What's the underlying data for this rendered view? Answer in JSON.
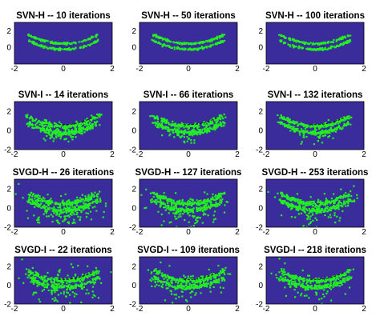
{
  "colors": {
    "background": "#3b2c9b",
    "particles": "#22ee22",
    "contour": "#111111",
    "axis": "#000000"
  },
  "chart_data": [
    {
      "type": "scatter",
      "title": "SVN-H -- 10 iterations",
      "method": "SVN-H",
      "iterations": 10,
      "xlim": [
        -2,
        2
      ],
      "ylim": [
        -2,
        3
      ],
      "xticks": [
        "-2",
        "0",
        "2"
      ],
      "yticks": [
        "0",
        "2"
      ]
    },
    {
      "type": "scatter",
      "title": "SVN-H -- 50 iterations",
      "method": "SVN-H",
      "iterations": 50,
      "xlim": [
        -2,
        2
      ],
      "ylim": [
        -2,
        3
      ],
      "xticks": [
        "-2",
        "0",
        "2"
      ],
      "yticks": [
        "0",
        "2"
      ]
    },
    {
      "type": "scatter",
      "title": "SVN-H -- 100 iterations",
      "method": "SVN-H",
      "iterations": 100,
      "xlim": [
        -2,
        2
      ],
      "ylim": [
        -2,
        3
      ],
      "xticks": [
        "-2",
        "0",
        "2"
      ],
      "yticks": [
        "0",
        "2"
      ]
    },
    {
      "type": "scatter",
      "title": "SVN-I -- 14 iterations",
      "method": "SVN-I",
      "iterations": 14,
      "xlim": [
        -2,
        2
      ],
      "ylim": [
        -2,
        3
      ],
      "xticks": [
        "-2",
        "0",
        "2"
      ],
      "yticks": [
        "-2",
        "0",
        "2"
      ]
    },
    {
      "type": "scatter",
      "title": "SVN-I -- 66 iterations",
      "method": "SVN-I",
      "iterations": 66,
      "xlim": [
        -2,
        2
      ],
      "ylim": [
        -2,
        3
      ],
      "xticks": [
        "-2",
        "0",
        "2"
      ],
      "yticks": [
        "-2",
        "0",
        "2"
      ]
    },
    {
      "type": "scatter",
      "title": "SVN-I -- 132 iterations",
      "method": "SVN-I",
      "iterations": 132,
      "xlim": [
        -2,
        2
      ],
      "ylim": [
        -2,
        3
      ],
      "xticks": [
        "-2",
        "0",
        "2"
      ],
      "yticks": [
        "-2",
        "0",
        "2"
      ]
    },
    {
      "type": "scatter",
      "title": "SVGD-H -- 26 iterations",
      "method": "SVGD-H",
      "iterations": 26,
      "xlim": [
        -2,
        2
      ],
      "ylim": [
        -2,
        3
      ],
      "xticks": [
        "-2",
        "0",
        "2"
      ],
      "yticks": [
        "-2",
        "0",
        "2"
      ]
    },
    {
      "type": "scatter",
      "title": "SVGD-H -- 127 iterations",
      "method": "SVGD-H",
      "iterations": 127,
      "xlim": [
        -2,
        2
      ],
      "ylim": [
        -2,
        3
      ],
      "xticks": [
        "-2",
        "0",
        "2"
      ],
      "yticks": [
        "-2",
        "0",
        "2"
      ]
    },
    {
      "type": "scatter",
      "title": "SVGD-H -- 253 iterations",
      "method": "SVGD-H",
      "iterations": 253,
      "xlim": [
        -2,
        2
      ],
      "ylim": [
        -2,
        3
      ],
      "xticks": [
        "-2",
        "0",
        "2"
      ],
      "yticks": [
        "-2",
        "0",
        "2"
      ]
    },
    {
      "type": "scatter",
      "title": "SVGD-I -- 22 iterations",
      "method": "SVGD-I",
      "iterations": 22,
      "xlim": [
        -2,
        2
      ],
      "ylim": [
        -2,
        3
      ],
      "xticks": [
        "-2",
        "0",
        "2"
      ],
      "yticks": [
        "-2",
        "0",
        "2"
      ]
    },
    {
      "type": "scatter",
      "title": "SVGD-I -- 109 iterations",
      "method": "SVGD-I",
      "iterations": 109,
      "xlim": [
        -2,
        2
      ],
      "ylim": [
        -2,
        3
      ],
      "xticks": [
        "-2",
        "0",
        "2"
      ],
      "yticks": [
        "-2",
        "0",
        "2"
      ]
    },
    {
      "type": "scatter",
      "title": "SVGD-I -- 218 iterations",
      "method": "SVGD-I",
      "iterations": 218,
      "xlim": [
        -2,
        2
      ],
      "ylim": [
        -2,
        3
      ],
      "xticks": [
        "-2",
        "0",
        "2"
      ],
      "yticks": [
        "-2",
        "0",
        "2"
      ]
    }
  ]
}
